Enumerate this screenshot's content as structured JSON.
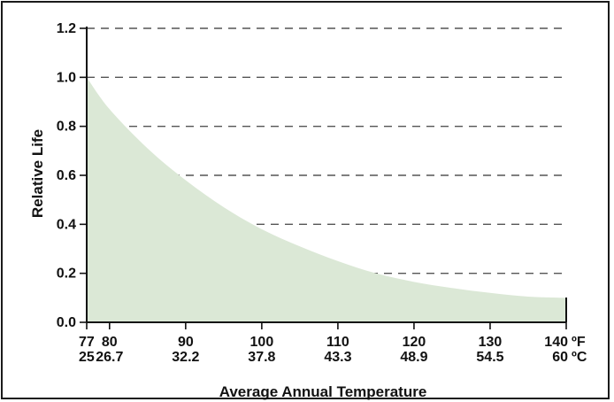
{
  "chart_data": {
    "type": "area",
    "title": "",
    "ylabel": "Relative Life",
    "xlabel": "Average Annual Temperature",
    "ylim": [
      0,
      1.2
    ],
    "xlim": [
      77,
      140
    ],
    "y_ticks": [
      "0.0",
      "0.2",
      "0.4",
      "0.6",
      "0.8",
      "1.0",
      "1.2"
    ],
    "x_ticks": [
      {
        "f": "77",
        "c": "25"
      },
      {
        "f": "80",
        "c": "26.7"
      },
      {
        "f": "90",
        "c": "32.2"
      },
      {
        "f": "100",
        "c": "37.8"
      },
      {
        "f": "110",
        "c": "43.3"
      },
      {
        "f": "120",
        "c": "48.9"
      },
      {
        "f": "130",
        "c": "54.5"
      },
      {
        "f": "140",
        "c": "60"
      }
    ],
    "unit_f": "ºF",
    "unit_c": "ºC",
    "grid": "dashed horizontal",
    "fill_color": "#dbe8d6",
    "series": [
      {
        "x": [
          77,
          80,
          85,
          90,
          95,
          100,
          105,
          110,
          115,
          120,
          125,
          130,
          135,
          140
        ],
        "values": [
          1.0,
          0.87,
          0.71,
          0.58,
          0.47,
          0.38,
          0.31,
          0.25,
          0.2,
          0.165,
          0.14,
          0.12,
          0.105,
          0.1
        ]
      }
    ]
  }
}
